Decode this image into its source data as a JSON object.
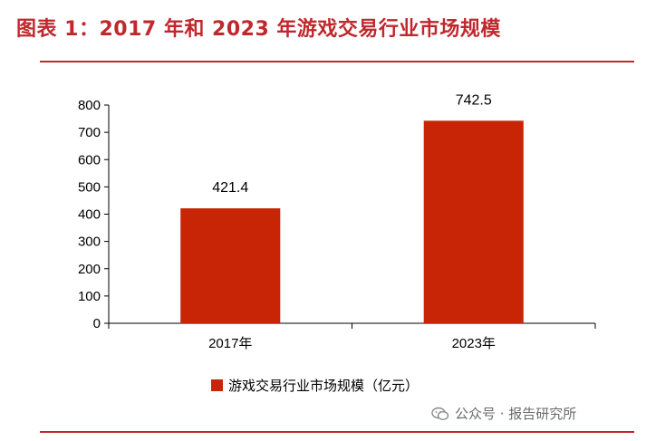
{
  "title": "图表 1：2017 年和 2023 年游戏交易行业市场规模",
  "colors": {
    "accent": "#c0282d",
    "bar": "#c82506",
    "axis": "#000000"
  },
  "chart_data": {
    "type": "bar",
    "categories": [
      "2017年",
      "2023年"
    ],
    "series": [
      {
        "name": "游戏交易行业市场规模（亿元）",
        "values": [
          421.4,
          742.5
        ]
      }
    ],
    "data_labels": [
      "421.4",
      "742.5"
    ],
    "ylim": [
      0,
      800
    ],
    "yticks": [
      0,
      100,
      200,
      300,
      400,
      500,
      600,
      700,
      800
    ],
    "legend_position": "bottom-center",
    "grid": false
  },
  "watermark": {
    "text": "公众号 · 报告研究所",
    "icon": "wechat-icon"
  }
}
